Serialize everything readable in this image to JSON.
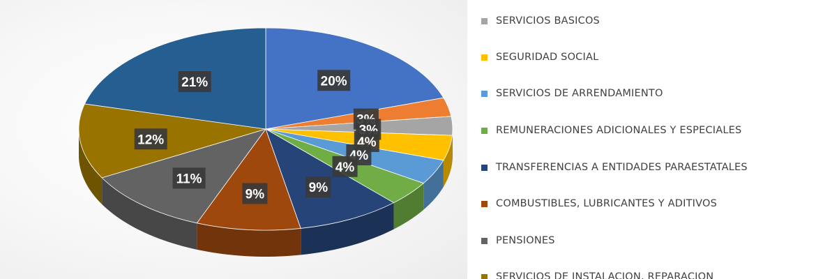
{
  "chart_data": {
    "type": "pie",
    "series": [
      {
        "name": "",
        "color": "#4472c4",
        "value": 20,
        "label": "20%"
      },
      {
        "name": "",
        "color": "#ed7d31",
        "value": 3,
        "label": "3%"
      },
      {
        "name": "SERVICIOS BASICOS",
        "color": "#a5a5a5",
        "value": 3,
        "label": "3%"
      },
      {
        "name": "SEGURIDAD SOCIAL",
        "color": "#ffc000",
        "value": 4,
        "label": "4%"
      },
      {
        "name": "SERVICIOS DE ARRENDAMIENTO",
        "color": "#5b9bd5",
        "value": 4,
        "label": "4%"
      },
      {
        "name": "REMUNERACIONES ADICIONALES Y ESPECIALES",
        "color": "#70ad47",
        "value": 4,
        "label": "4%"
      },
      {
        "name": "TRANSFERENCIAS A ENTIDADES PARAESTATALES",
        "color": "#264478",
        "value": 9,
        "label": "9%"
      },
      {
        "name": "COMBUSTIBLES, LUBRICANTES Y ADITIVOS",
        "color": "#9e480e",
        "value": 9,
        "label": "9%"
      },
      {
        "name": "PENSIONES",
        "color": "#636363",
        "value": 11,
        "label": "11%"
      },
      {
        "name": "SERVICIOS DE INSTALACION, REPARACION",
        "color": "#997300",
        "value": 12,
        "label": "12%"
      },
      {
        "name": "",
        "color": "#255e91",
        "value": 21,
        "label": "21%"
      }
    ],
    "legend_position": "right"
  }
}
